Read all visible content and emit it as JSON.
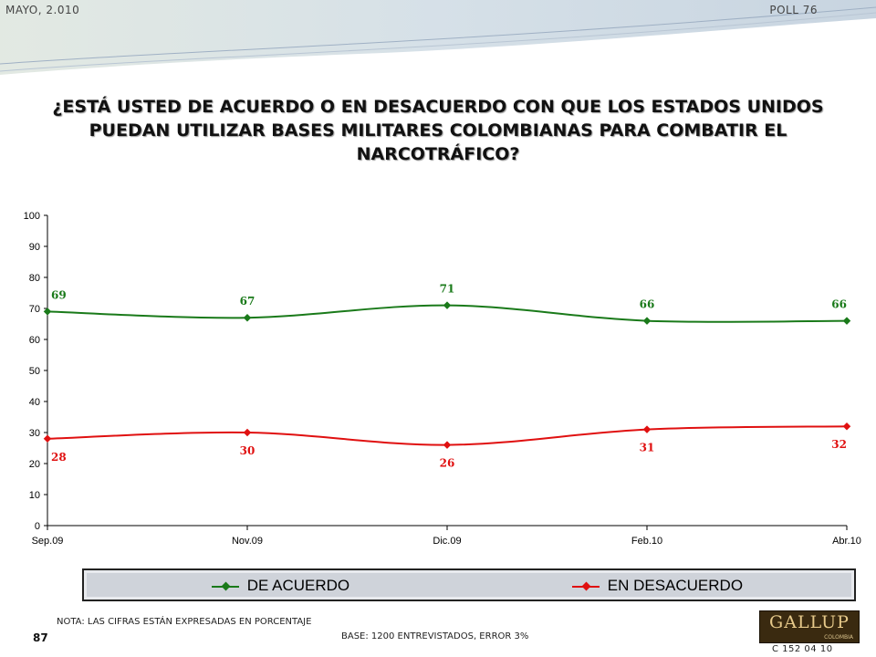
{
  "header": {
    "date": "MAYO, 2.010",
    "poll": "POLL 76",
    "title": "¿ESTÁ USTED DE ACUERDO O EN DESACUERDO CON QUE LOS ESTADOS UNIDOS PUEDAN UTILIZAR BASES MILITARES COLOMBIANAS PARA COMBATIR EL NARCOTRÁFICO?"
  },
  "chart_data": {
    "type": "line",
    "title": "¿ESTÁ USTED DE ACUERDO O EN DESACUERDO CON QUE LOS ESTADOS UNIDOS PUEDAN UTILIZAR BASES MILITARES COLOMBIANAS PARA COMBATIR EL NARCOTRÁFICO?",
    "categories": [
      "Sep.09",
      "Nov.09",
      "Dic.09",
      "Feb.10",
      "Abr.10"
    ],
    "ylim": [
      0,
      100
    ],
    "yticks": [
      0,
      10,
      20,
      30,
      40,
      50,
      60,
      70,
      80,
      90,
      100
    ],
    "grid": false,
    "legend_position": "bottom",
    "series": [
      {
        "name": "DE ACUERDO",
        "color": "#1a7a1a",
        "values": [
          69,
          67,
          71,
          66,
          66
        ]
      },
      {
        "name": "EN DESACUERDO",
        "color": "#e01010",
        "values": [
          28,
          30,
          26,
          31,
          32
        ]
      }
    ]
  },
  "footer": {
    "note": "NOTA: LAS CIFRAS ESTÁN EXPRESADAS EN PORCENTAJE",
    "base": "BASE: 1200 ENTREVISTADOS, ERROR 3%",
    "page_number": "87",
    "logo_text": "GALLUP",
    "logo_sub": "COLOMBIA",
    "code": "C 152 04 10"
  }
}
